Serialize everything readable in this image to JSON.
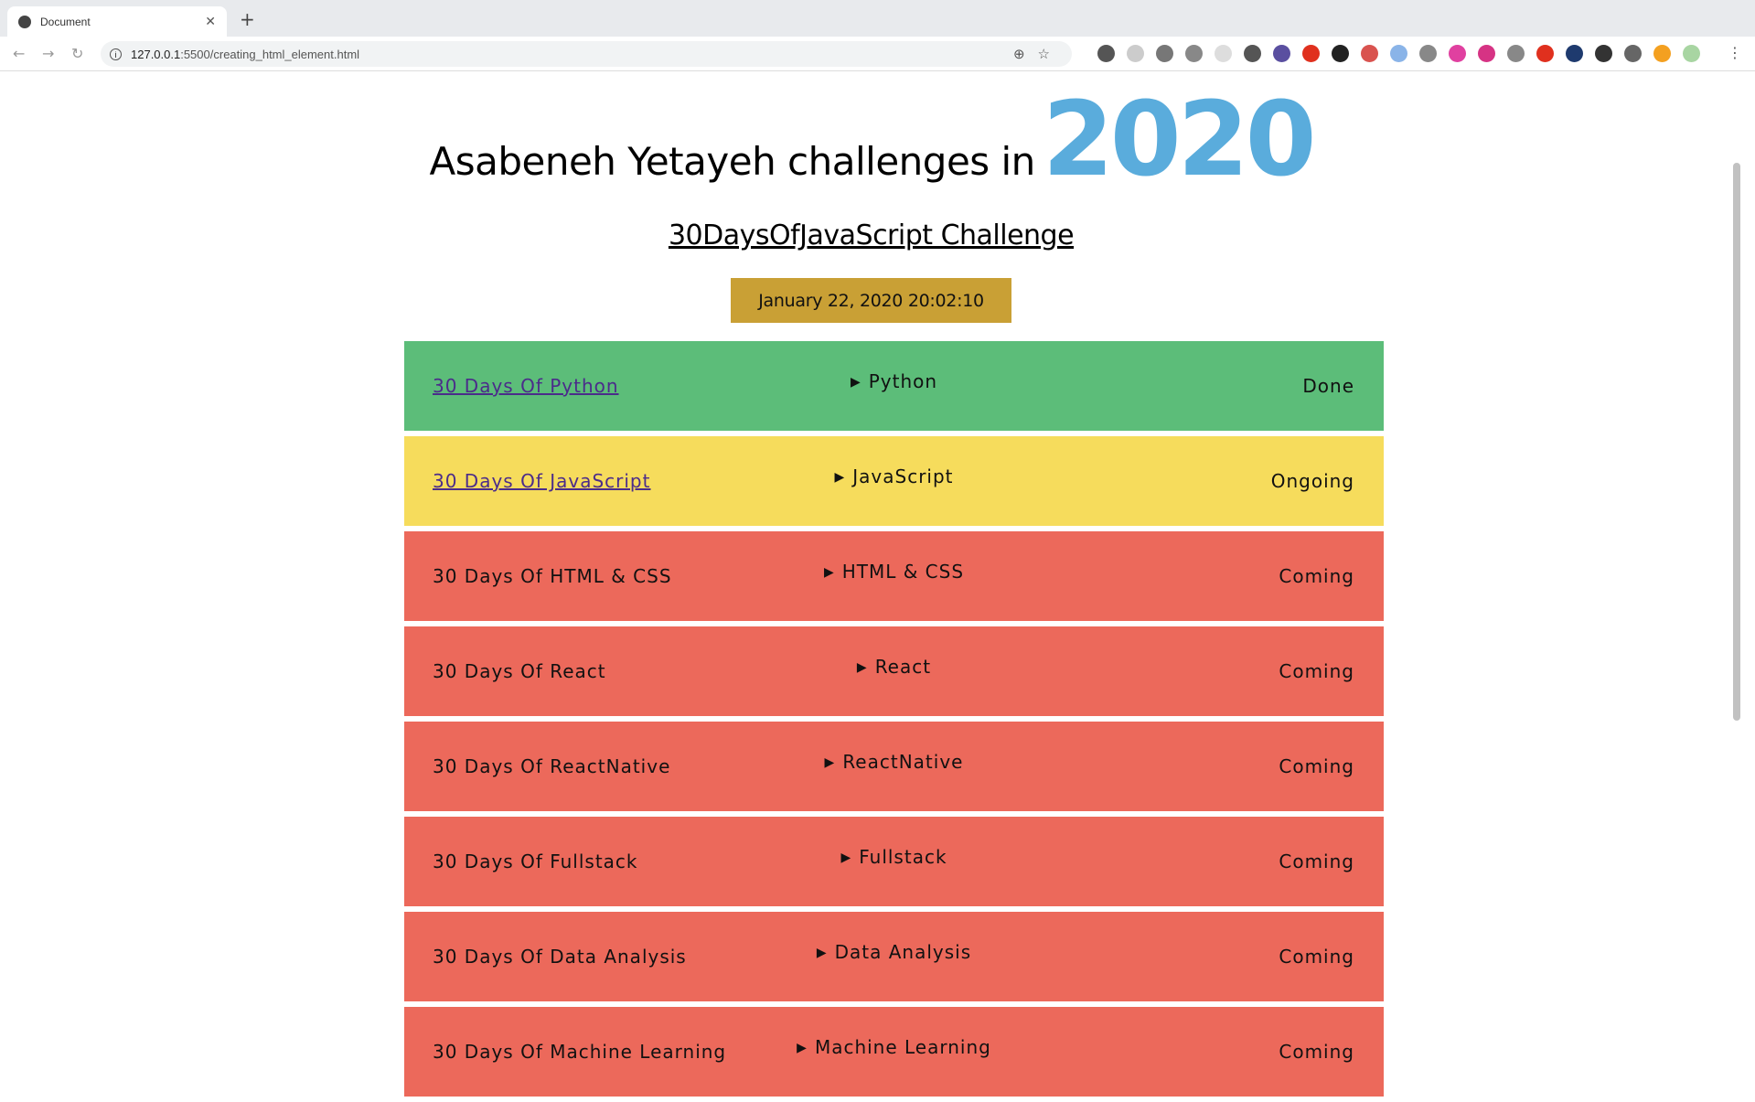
{
  "browser": {
    "tab_title": "Document",
    "url_host": "127.0.0.1",
    "url_rest": ":5500/creating_html_element.html",
    "extension_colors": [
      "#555",
      "#ccc",
      "#777",
      "#888",
      "#ddd",
      "#555",
      "#5a4fa0",
      "#e0301e",
      "#222",
      "#d9534f",
      "#8ab4e8",
      "#888",
      "#e040a0",
      "#d63384",
      "#888",
      "#e0301e",
      "#1e3a6e",
      "#333",
      "#666",
      "#f4a020",
      "#a8d5a2"
    ]
  },
  "header": {
    "title": "Asabeneh Yetayeh challenges in",
    "year": "2020",
    "year_color": "#5aacdc",
    "subtitle": "30DaysOfJavaScript Challenge",
    "datetime": "January 22, 2020 20:02:10"
  },
  "challenges": [
    {
      "name": "30 Days Of Python",
      "link": true,
      "topic": "Python",
      "status": "Done",
      "color": "#5cbd79"
    },
    {
      "name": "30 Days Of JavaScript",
      "link": true,
      "topic": "JavaScript",
      "status": "Ongoing",
      "color": "#f6dc5c"
    },
    {
      "name": "30 Days Of HTML & CSS",
      "link": false,
      "topic": "HTML & CSS",
      "status": "Coming",
      "color": "#ec695b"
    },
    {
      "name": "30 Days Of React",
      "link": false,
      "topic": "React",
      "status": "Coming",
      "color": "#ec695b"
    },
    {
      "name": "30 Days Of ReactNative",
      "link": false,
      "topic": "ReactNative",
      "status": "Coming",
      "color": "#ec695b"
    },
    {
      "name": "30 Days Of Fullstack",
      "link": false,
      "topic": "Fullstack",
      "status": "Coming",
      "color": "#ec695b"
    },
    {
      "name": "30 Days Of Data Analysis",
      "link": false,
      "topic": "Data Analysis",
      "status": "Coming",
      "color": "#ec695b"
    },
    {
      "name": "30 Days Of Machine Learning",
      "link": false,
      "topic": "Machine Learning",
      "status": "Coming",
      "color": "#ec695b"
    }
  ]
}
